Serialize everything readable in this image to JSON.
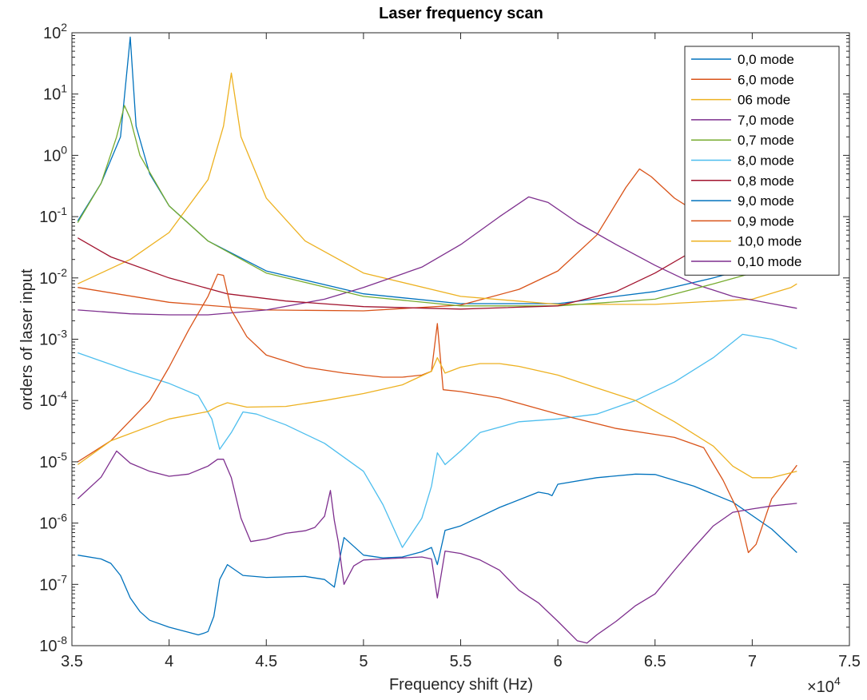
{
  "chart_data": {
    "type": "line",
    "title": "Laser frequency scan",
    "xlabel": "Frequency shift (Hz)",
    "ylabel": "orders of laser input",
    "x_exponent_label": "×10",
    "x_exponent_power": "4",
    "xlim": [
      35000,
      75000
    ],
    "ylim": [
      1e-08,
      100
    ],
    "yscale": "log",
    "grid": false,
    "legend_position": "top-right",
    "x_ticks": [
      35000,
      40000,
      45000,
      50000,
      55000,
      60000,
      65000,
      70000,
      75000
    ],
    "x_tick_labels": [
      "3.5",
      "4",
      "4.5",
      "5",
      "5.5",
      "6",
      "6.5",
      "7",
      "7.5"
    ],
    "y_ticks": [
      1e-08,
      1e-07,
      1e-06,
      1e-05,
      0.0001,
      0.001,
      0.01,
      0.1,
      1,
      10,
      100
    ],
    "y_tick_bases": [
      "10",
      "10",
      "10",
      "10",
      "10",
      "10",
      "10",
      "10",
      "10",
      "10",
      "10"
    ],
    "y_tick_powers": [
      "-8",
      "-7",
      "-6",
      "-5",
      "-4",
      "-3",
      "-2",
      "-1",
      "0",
      "1",
      "2"
    ],
    "series": [
      {
        "name": "0,0 mode",
        "color": "#0072BD",
        "x": [
          35300,
          36500,
          37500,
          38000,
          38300,
          39000,
          40000,
          42000,
          45000,
          50000,
          55000,
          60000,
          65000,
          68000,
          70000,
          72300
        ],
        "y": [
          0.085,
          0.35,
          2.0,
          85,
          3.0,
          0.5,
          0.15,
          0.04,
          0.013,
          0.0055,
          0.0038,
          0.0038,
          0.006,
          0.01,
          0.015,
          0.022
        ]
      },
      {
        "name": "6,0 mode",
        "color": "#D95319",
        "x": [
          35300,
          40000,
          45000,
          50000,
          55000,
          58000,
          60000,
          62000,
          63500,
          64200,
          64800,
          66000,
          67500,
          69000,
          70000,
          72300
        ],
        "y": [
          0.007,
          0.004,
          0.003,
          0.0029,
          0.0036,
          0.0065,
          0.013,
          0.05,
          0.3,
          0.6,
          0.45,
          0.2,
          0.1,
          0.06,
          0.045,
          0.035
        ]
      },
      {
        "name": "06 mode",
        "color": "#EDB120",
        "x": [
          35300,
          38000,
          40000,
          42000,
          42800,
          43200,
          43700,
          45000,
          47000,
          50000,
          55000,
          60000,
          65000,
          70000,
          72000,
          72300
        ],
        "y": [
          0.008,
          0.02,
          0.055,
          0.4,
          3.0,
          22,
          2.0,
          0.2,
          0.04,
          0.012,
          0.005,
          0.0037,
          0.0037,
          0.0045,
          0.007,
          0.008
        ]
      },
      {
        "name": "7,0 mode",
        "color": "#7E2F8E",
        "x": [
          35300,
          38000,
          40000,
          42000,
          45000,
          48000,
          50000,
          53000,
          55000,
          57000,
          58500,
          59500,
          61000,
          63000,
          65000,
          67000,
          69000,
          71000,
          72300
        ],
        "y": [
          0.003,
          0.0026,
          0.0025,
          0.0025,
          0.003,
          0.0045,
          0.007,
          0.015,
          0.035,
          0.1,
          0.21,
          0.17,
          0.08,
          0.035,
          0.016,
          0.008,
          0.005,
          0.0038,
          0.0032
        ]
      },
      {
        "name": "0,7 mode",
        "color": "#77AC30",
        "x": [
          35300,
          36500,
          37300,
          37700,
          38000,
          38500,
          40000,
          42000,
          45000,
          50000,
          55000,
          60000,
          65000,
          68000,
          70000,
          72300
        ],
        "y": [
          0.08,
          0.35,
          2.0,
          6.5,
          4.0,
          1.0,
          0.15,
          0.04,
          0.012,
          0.005,
          0.0035,
          0.0035,
          0.0045,
          0.008,
          0.012,
          0.015
        ]
      },
      {
        "name": "8,0 mode",
        "color": "#4DBEEE",
        "x": [
          35300,
          38000,
          40000,
          41500,
          42200,
          42600,
          43200,
          43800,
          44500,
          46000,
          48000,
          50000,
          51000,
          52000,
          53000,
          53500,
          53800,
          54200,
          55000,
          56000,
          58000,
          60000,
          62000,
          64000,
          66000,
          68000,
          69500,
          71000,
          72300
        ],
        "y": [
          0.0006,
          0.0003,
          0.00019,
          0.00012,
          5e-05,
          1.6e-05,
          3e-05,
          6.5e-05,
          6e-05,
          4e-05,
          2e-05,
          7e-06,
          2e-06,
          4e-07,
          1.2e-06,
          4e-06,
          1.4e-05,
          9e-06,
          1.5e-05,
          3e-05,
          4.5e-05,
          5e-05,
          6e-05,
          0.0001,
          0.0002,
          0.0005,
          0.0012,
          0.001,
          0.0007
        ]
      },
      {
        "name": "0,8 mode",
        "color": "#A2142F",
        "x": [
          35300,
          37000,
          40000,
          43000,
          46000,
          50000,
          55000,
          60000,
          63000,
          65000,
          67000,
          68500,
          70000,
          72300
        ],
        "y": [
          0.045,
          0.022,
          0.01,
          0.0055,
          0.0042,
          0.0034,
          0.0031,
          0.0035,
          0.006,
          0.012,
          0.028,
          0.05,
          0.08,
          0.15
        ]
      },
      {
        "name": "9,0 mode",
        "color": "#0072BD",
        "x": [
          35300,
          36500,
          37000,
          37500,
          38000,
          38500,
          39000,
          40000,
          41000,
          41500,
          41800,
          42000,
          42300,
          42600,
          43000,
          43800,
          45000,
          47000,
          48000,
          48500,
          48700,
          49000,
          50000,
          51000,
          52000,
          53000,
          53500,
          53800,
          54200,
          55000,
          57000,
          59000,
          59500,
          59700,
          60000,
          62000,
          64000,
          65000,
          67000,
          69000,
          71000,
          72300
        ],
        "y": [
          3e-07,
          2.6e-07,
          2.2e-07,
          1.4e-07,
          6e-08,
          3.6e-08,
          2.6e-08,
          2e-08,
          1.65e-08,
          1.5e-08,
          1.6e-08,
          1.7e-08,
          3e-08,
          1.2e-07,
          2.1e-07,
          1.4e-07,
          1.3e-07,
          1.35e-07,
          1.2e-07,
          9e-08,
          2e-07,
          5.8e-07,
          3e-07,
          2.7e-07,
          2.8e-07,
          3.4e-07,
          4e-07,
          2.1e-07,
          7.6e-07,
          9e-07,
          1.8e-06,
          3.2e-06,
          3e-06,
          2.8e-06,
          4.3e-06,
          5.5e-06,
          6.3e-06,
          6.2e-06,
          4e-06,
          2.2e-06,
          8e-07,
          3.3e-07
        ]
      },
      {
        "name": "0,9 mode",
        "color": "#D95319",
        "x": [
          35300,
          37000,
          39000,
          40000,
          41000,
          42000,
          42500,
          42800,
          43200,
          44000,
          45000,
          47000,
          49000,
          51000,
          52000,
          53000,
          53500,
          53800,
          54100,
          55000,
          57000,
          60000,
          63000,
          65000,
          66000,
          67500,
          68500,
          69300,
          69800,
          70200,
          71000,
          72300
        ],
        "y": [
          1e-05,
          2.2e-05,
          0.0001,
          0.00035,
          0.0014,
          0.005,
          0.0115,
          0.011,
          0.003,
          0.0011,
          0.00055,
          0.00035,
          0.00028,
          0.00024,
          0.00024,
          0.00026,
          0.0003,
          0.0018,
          0.00015,
          0.00014,
          0.00011,
          6e-05,
          3.5e-05,
          2.8e-05,
          2.5e-05,
          1.7e-05,
          5e-06,
          1.5e-06,
          3.3e-07,
          4.5e-07,
          2.5e-06,
          8.8e-06
        ]
      },
      {
        "name": "10,0 mode",
        "color": "#EDB120",
        "x": [
          35300,
          37000,
          40000,
          42000,
          42500,
          43000,
          44000,
          46000,
          48000,
          50000,
          52000,
          53500,
          53800,
          54200,
          55000,
          56000,
          57000,
          58000,
          60000,
          62000,
          64000,
          66000,
          68000,
          69000,
          70000,
          71000,
          72300
        ],
        "y": [
          9e-06,
          2.2e-05,
          5e-05,
          6.6e-05,
          8e-05,
          9.2e-05,
          7.8e-05,
          8e-05,
          0.0001,
          0.00013,
          0.00018,
          0.0003,
          0.0005,
          0.00028,
          0.00035,
          0.0004,
          0.0004,
          0.00036,
          0.00026,
          0.00016,
          0.0001,
          4.5e-05,
          1.8e-05,
          8.5e-06,
          5.5e-06,
          5.5e-06,
          7e-06
        ]
      },
      {
        "name": "0,10 mode",
        "color": "#7E2F8E",
        "x": [
          35300,
          36500,
          37300,
          38000,
          39000,
          40000,
          41000,
          42000,
          42500,
          42800,
          43200,
          43700,
          44200,
          45000,
          46000,
          47000,
          47500,
          48000,
          48300,
          48500,
          48700,
          49000,
          49500,
          50000,
          51000,
          52000,
          53000,
          53500,
          53800,
          54200,
          55000,
          56000,
          57000,
          58000,
          59000,
          60000,
          61000,
          61500,
          62000,
          63000,
          64000,
          65000,
          66000,
          67000,
          68000,
          69000,
          70000,
          71000,
          72300
        ],
        "y": [
          2.5e-06,
          5.6e-06,
          1.5e-05,
          9.5e-06,
          7e-06,
          5.8e-06,
          6.3e-06,
          8.5e-06,
          1.1e-05,
          1.1e-05,
          5.5e-06,
          1.2e-06,
          5e-07,
          5.5e-07,
          6.8e-07,
          7.5e-07,
          8.5e-07,
          1.3e-06,
          3.4e-06,
          1.1e-06,
          5e-07,
          1e-07,
          2e-07,
          2.5e-07,
          2.6e-07,
          2.7e-07,
          2.8e-07,
          2.6e-07,
          6e-08,
          3.5e-07,
          3.2e-07,
          2.5e-07,
          1.7e-07,
          8e-08,
          5e-08,
          2.5e-08,
          1.2e-08,
          1.1e-08,
          1.5e-08,
          2.5e-08,
          4.5e-08,
          7e-08,
          1.7e-07,
          4e-07,
          9e-07,
          1.5e-06,
          1.7e-06,
          1.9e-06,
          2.1e-06
        ]
      }
    ]
  }
}
